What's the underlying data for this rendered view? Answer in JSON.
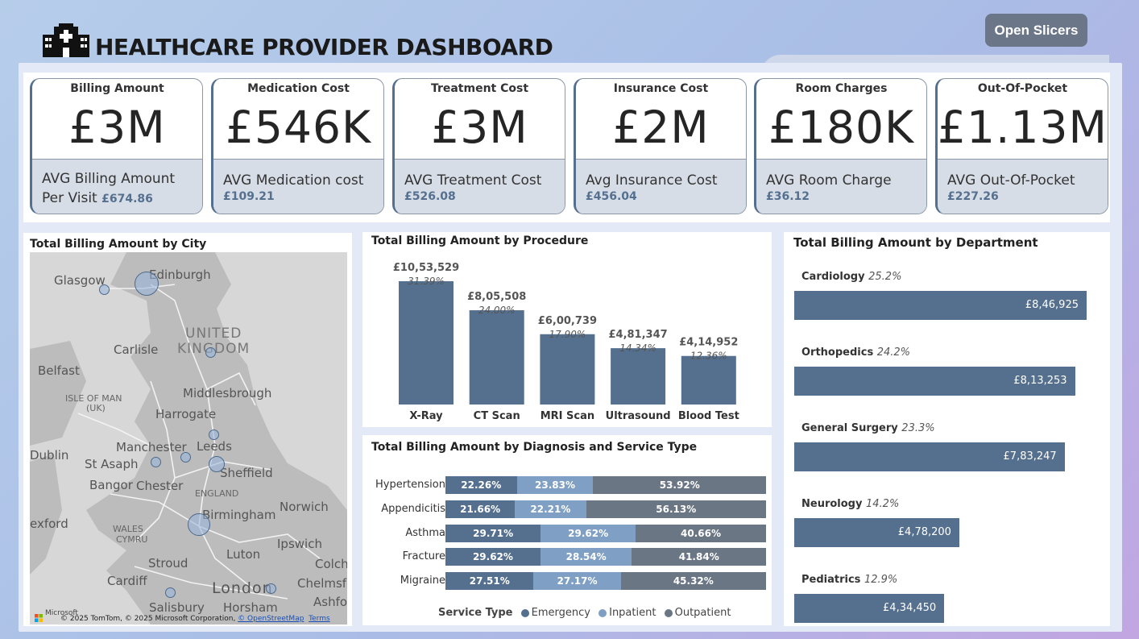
{
  "header": {
    "title": "HEALTHCARE PROVIDER DASHBOARD",
    "slicer_button": "Open Slicers",
    "colors": {
      "accent": "#55708f",
      "light": "#7fa0c4",
      "dark": "#6b7685"
    }
  },
  "kpis": [
    {
      "label": "Billing Amount",
      "value": "£3M",
      "sub_label": "AVG Billing Amount Per Visit",
      "sub_value": "£674.86"
    },
    {
      "label": "Medication Cost",
      "value": "£546K",
      "sub_label": "AVG Medication cost",
      "sub_value": "£109.21"
    },
    {
      "label": "Treatment Cost",
      "value": "£3M",
      "sub_label": "AVG Treatment Cost",
      "sub_value": "£526.08"
    },
    {
      "label": "Insurance Cost",
      "value": "£2M",
      "sub_label": "Avg Insurance Cost",
      "sub_value": "£456.04"
    },
    {
      "label": "Room Charges",
      "value": "£180K",
      "sub_label": "AVG Room Charge",
      "sub_value": "£36.12"
    },
    {
      "label": "Out-Of-Pocket",
      "value": "£1.13M",
      "sub_label": "AVG Out-Of-Pocket",
      "sub_value": "£227.26"
    }
  ],
  "map": {
    "title": "Total Billing Amount by City",
    "labels": {
      "glasgow": "Glasgow",
      "edinburgh": "Edinburgh",
      "united": "UNITED",
      "kingdom": "KINGDOM",
      "carlisle": "Carlisle",
      "belfast": "Belfast",
      "isle": "ISLE OF MAN",
      "uk": "(UK)",
      "middlesbrough": "Middlesbrough",
      "harrogate": "Harrogate",
      "manchester": "Manchester",
      "leeds": "Leeds",
      "dublin": "Dublin",
      "stasaph": "St Asaph",
      "sheffield": "Sheffield",
      "bangor": "Bangor",
      "chester": "Chester",
      "england": "ENGLAND",
      "norwich": "Norwich",
      "birmingham": "Birmingham",
      "exford": "exford",
      "wales": "WALES",
      "cymru": "CYMRU",
      "ipswich": "Ipswich",
      "luton": "Luton",
      "stroud": "Stroud",
      "colch": "Colch",
      "cardiff": "Cardiff",
      "london": "London",
      "chelmsf": "Chelmsf",
      "ashfo": "Ashfo",
      "salisbury": "Salisbury",
      "horsham": "Horsham"
    },
    "copyright": "© 2025 TomTom, © 2025 Microsoft Corporation,",
    "osm_link": "© OpenStreetMap",
    "terms_link": "Terms",
    "ms_logo": "Microsoft"
  },
  "procedure_chart": {
    "title": "Total Billing Amount by Procedure"
  },
  "diagnosis_chart": {
    "title": "Total Billing Amount by Diagnosis and Service Type",
    "legend_title": "Service Type",
    "legend_items": [
      "Emergency",
      "Inpatient",
      "Outpatient"
    ]
  },
  "department_chart": {
    "title": "Total Billing Amount by Department"
  },
  "chart_data": [
    {
      "type": "bar",
      "title": "Total Billing Amount by Procedure",
      "categories": [
        "X-Ray",
        "CT Scan",
        "MRI Scan",
        "Ultrasound",
        "Blood Test"
      ],
      "values": [
        1053529,
        805508,
        600739,
        481347,
        414952
      ],
      "value_labels": [
        "£10,53,529",
        "£8,05,508",
        "£6,00,739",
        "£4,81,347",
        "£4,14,952"
      ],
      "pct_labels": [
        "31.39%",
        "24.00%",
        "17.90%",
        "14.34%",
        "12.36%"
      ],
      "ylim": [
        0,
        1053529
      ]
    },
    {
      "type": "bar",
      "orientation": "horizontal-stacked-100",
      "title": "Total Billing Amount by Diagnosis and Service Type",
      "categories": [
        "Hypertension",
        "Appendicitis",
        "Asthma",
        "Fracture",
        "Migraine"
      ],
      "series": [
        {
          "name": "Emergency",
          "values": [
            22.26,
            21.66,
            29.71,
            29.62,
            27.51
          ],
          "labels": [
            "22.26%",
            "21.66%",
            "29.71%",
            "29.62%",
            "27.51%"
          ]
        },
        {
          "name": "Inpatient",
          "values": [
            23.83,
            22.21,
            29.62,
            28.54,
            27.17
          ],
          "labels": [
            "23.83%",
            "22.21%",
            "29.62%",
            "28.54%",
            "27.17%"
          ]
        },
        {
          "name": "Outpatient",
          "values": [
            53.92,
            56.13,
            40.66,
            41.84,
            45.32
          ],
          "labels": [
            "53.92%",
            "56.13%",
            "40.66%",
            "41.84%",
            "45.32%"
          ]
        }
      ]
    },
    {
      "type": "bar",
      "orientation": "horizontal",
      "title": "Total Billing Amount by Department",
      "categories": [
        "Cardiology",
        "Orthopedics",
        "General Surgery",
        "Neurology",
        "Pediatrics"
      ],
      "values": [
        846925,
        813253,
        783247,
        478200,
        434450
      ],
      "value_labels": [
        "£8,46,925",
        "£8,13,253",
        "£7,83,247",
        "£4,78,200",
        "£4,34,450"
      ],
      "pct_labels": [
        "25.2%",
        "24.2%",
        "23.3%",
        "14.2%",
        "12.9%"
      ],
      "xlim": [
        0,
        846925
      ]
    }
  ]
}
